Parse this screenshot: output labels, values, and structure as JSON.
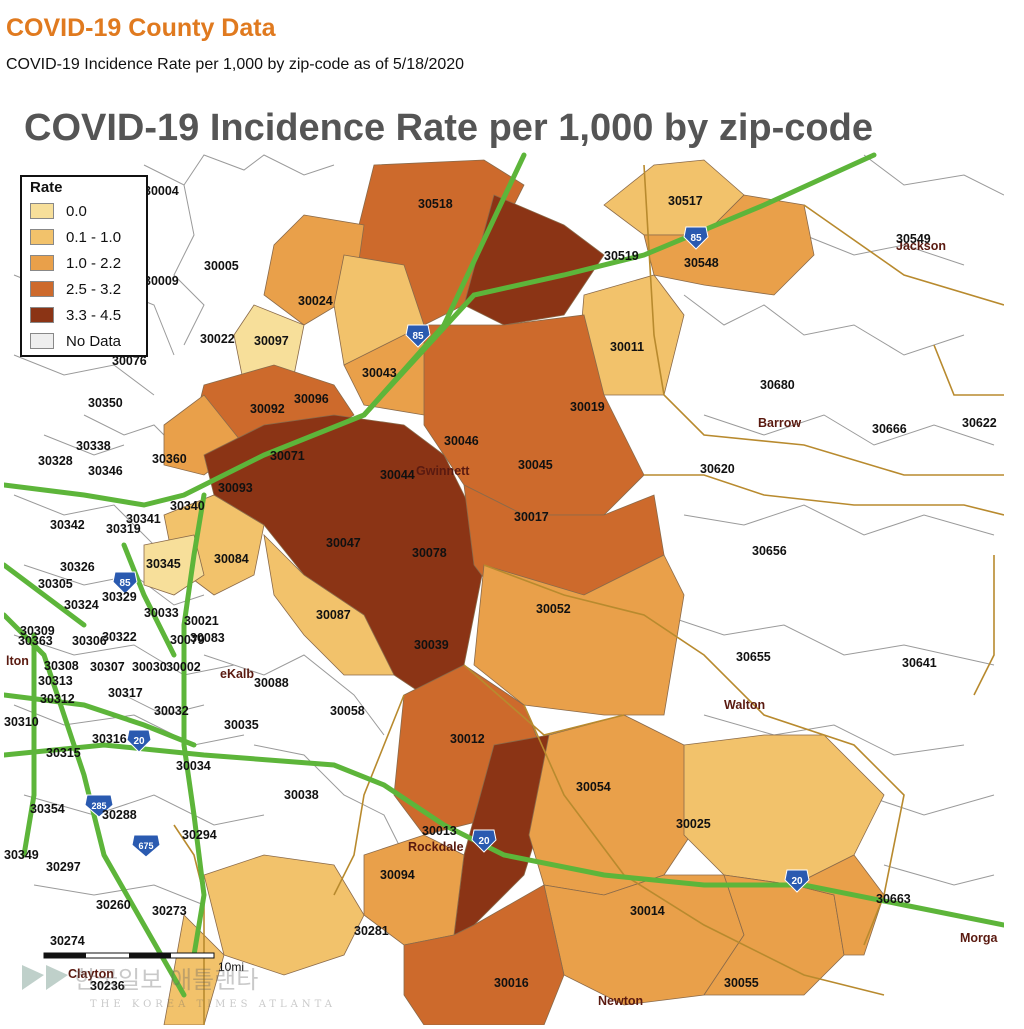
{
  "header": {
    "title": "COVID-19 County Data",
    "subtitle": "COVID-19 Incidence Rate per 1,000 by zip-code as of 5/18/2020"
  },
  "map": {
    "title": "COVID-19 Incidence Rate per 1,000 by zip-code",
    "legend": {
      "title": "Rate",
      "items": [
        {
          "label": "0.0",
          "color": "#f7df9a"
        },
        {
          "label": "0.1 - 1.0",
          "color": "#f2c26b"
        },
        {
          "label": "1.0 - 2.2",
          "color": "#e9a04a"
        },
        {
          "label": "2.5 - 3.2",
          "color": "#cd6a2c"
        },
        {
          "label": "3.3 - 4.5",
          "color": "#8b3415"
        },
        {
          "label": "No Data",
          "color": "#eeeeee"
        }
      ]
    },
    "counties": [
      "Gwinnett",
      "Barrow",
      "Walton",
      "Rockdale",
      "Newton",
      "DeKalb",
      "Jackson",
      "Clayton",
      "Morgan"
    ],
    "counties_display": [
      "Gwinnett",
      "Barrow",
      "Walton",
      "Rockdale",
      "Newton",
      "eKalb",
      "Jackson",
      "Clayton",
      "Morga",
      "lton"
    ],
    "highway_shields": [
      "85",
      "85",
      "85",
      "20",
      "20",
      "20",
      "285",
      "675"
    ],
    "scale_label": "10mi",
    "watermark_main": "한국일보 애틀랜타",
    "watermark_sub": "THE KOREA TIMES ATLANTA",
    "zip_labels": [
      "30004",
      "30005",
      "30009",
      "30022",
      "30024",
      "30097",
      "30076",
      "30350",
      "30338",
      "30328",
      "30346",
      "30360",
      "30092",
      "30096",
      "30071",
      "30093",
      "30340",
      "30342",
      "30319",
      "30341",
      "30326",
      "30305",
      "30324",
      "30329",
      "30345",
      "30084",
      "30033",
      "30021",
      "30083",
      "30309",
      "30363",
      "30306",
      "30322",
      "30079",
      "30308",
      "30307",
      "30030",
      "30002",
      "30313",
      "30312",
      "30317",
      "30310",
      "30032",
      "30316",
      "30315",
      "30035",
      "30088",
      "30034",
      "30354",
      "30288",
      "30349",
      "30297",
      "30294",
      "30038",
      "30260",
      "30273",
      "30274",
      "30236",
      "30518",
      "30517",
      "30519",
      "30548",
      "30549",
      "30011",
      "30043",
      "30046",
      "30019",
      "30680",
      "30666",
      "30622",
      "30044",
      "30045",
      "30620",
      "30017",
      "30656",
      "30047",
      "30078",
      "30052",
      "30087",
      "30039",
      "30655",
      "30641",
      "30058",
      "30012",
      "30054",
      "30025",
      "30013",
      "30094",
      "30014",
      "30663",
      "30281",
      "30016",
      "30055"
    ],
    "rates": {
      "no_data": "#ffffff",
      "boundary": "#888888",
      "county_line": "#b88a2e",
      "highway": "#5db53a"
    }
  }
}
